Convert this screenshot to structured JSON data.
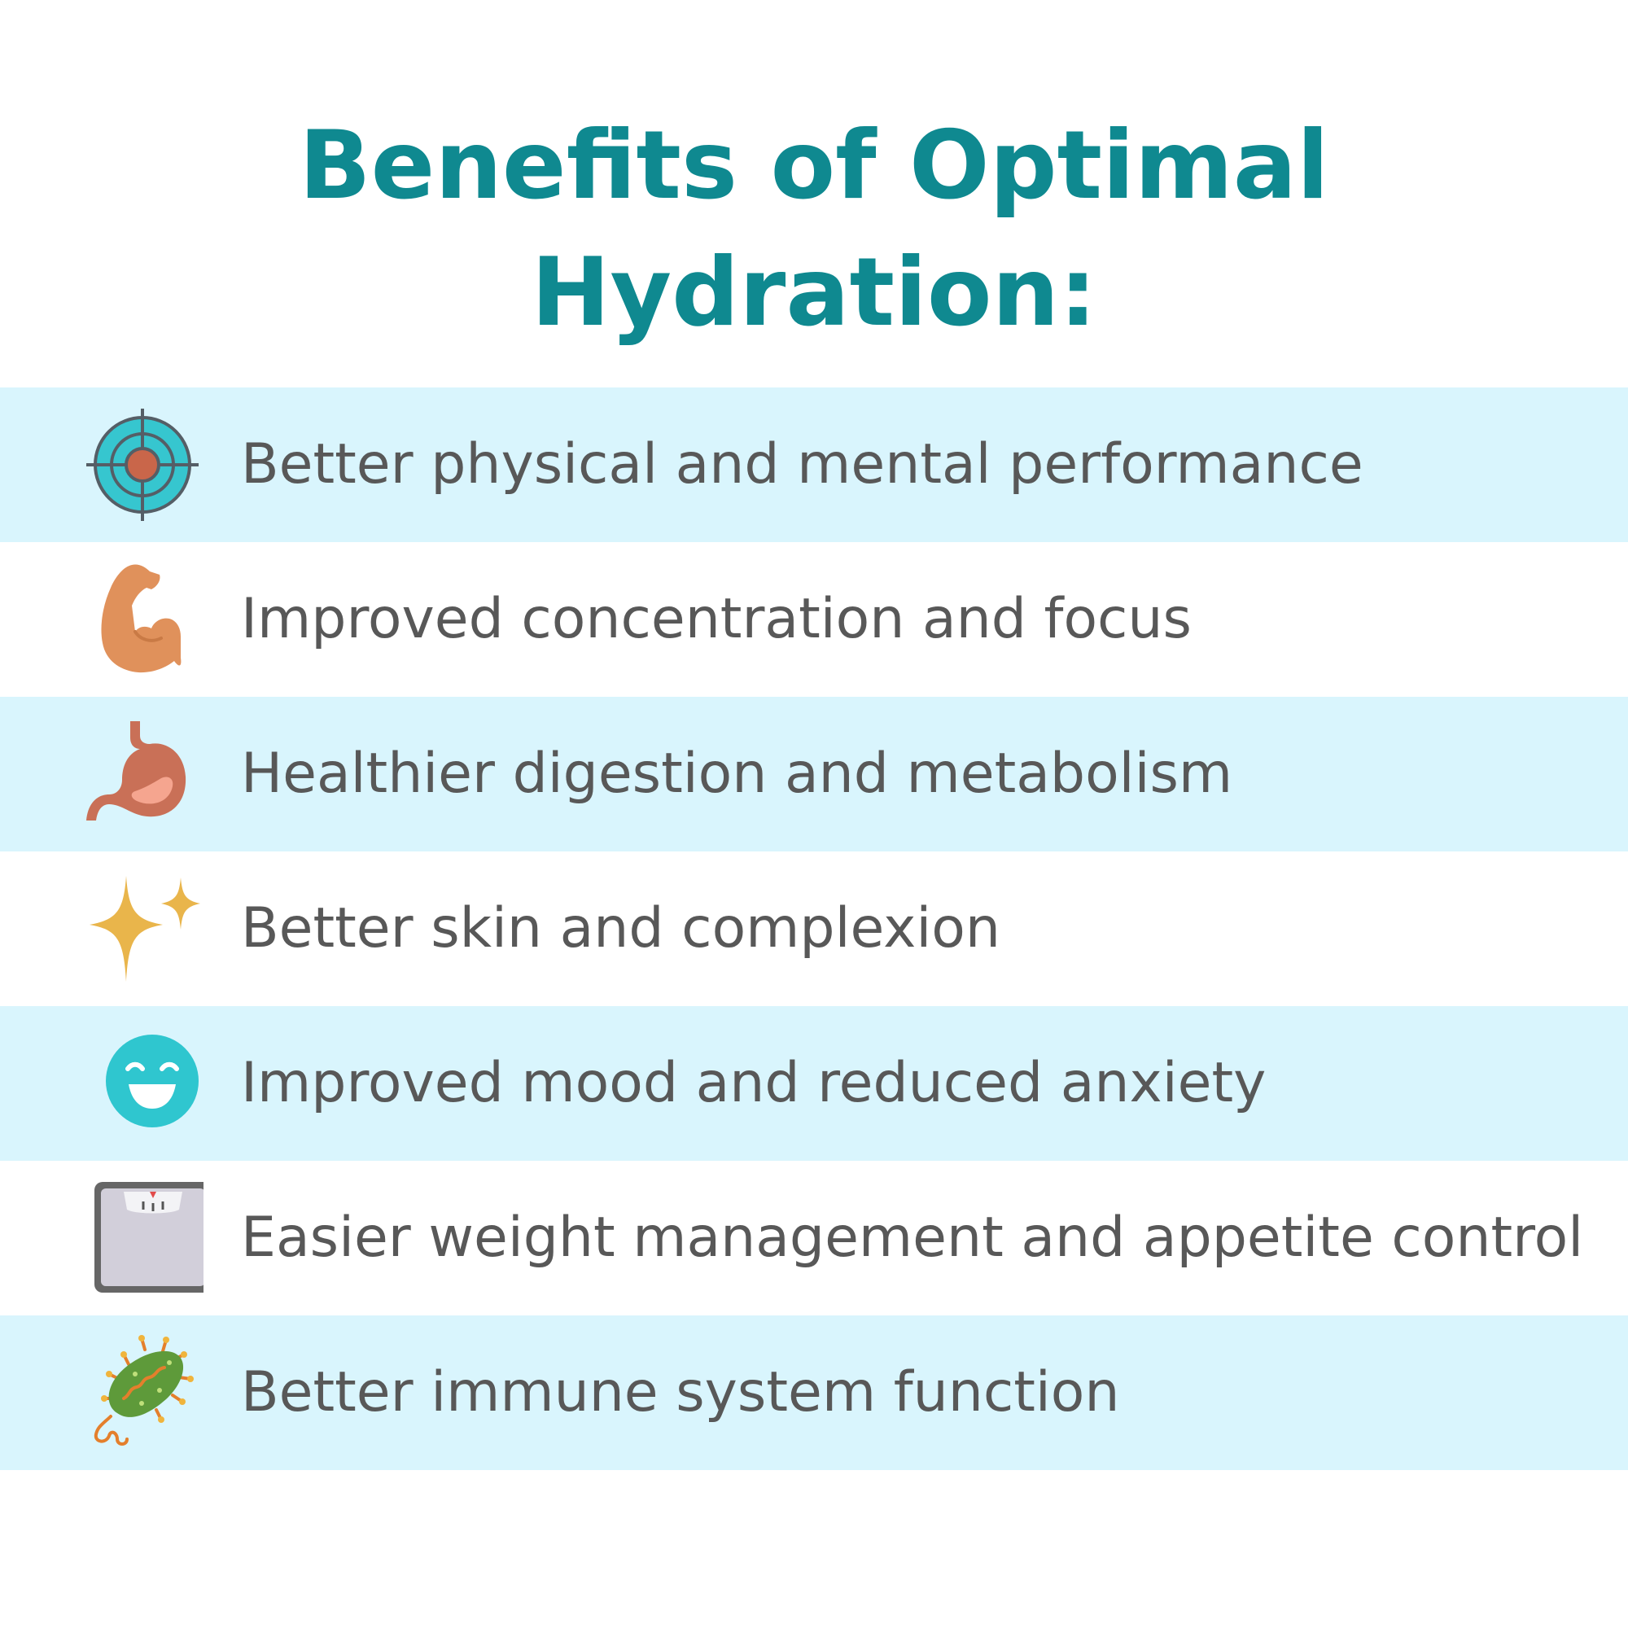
{
  "title": {
    "line1": "Benefits of Optimal",
    "line2": "Hydration:"
  },
  "colors": {
    "title": "#0f8990",
    "band": "#d9f5fd",
    "text": "#585858"
  },
  "benefits": [
    {
      "label": "Better physical and mental performance",
      "icon": "target-icon"
    },
    {
      "label": "Improved concentration and focus",
      "icon": "flexed-bicep-icon"
    },
    {
      "label": "Healthier digestion and metabolism",
      "icon": "stomach-icon"
    },
    {
      "label": "Better skin and complexion",
      "icon": "sparkles-icon"
    },
    {
      "label": "Improved mood and reduced anxiety",
      "icon": "smiley-face-icon"
    },
    {
      "label": "Easier weight management and appetite control",
      "icon": "weight-scale-icon"
    },
    {
      "label": "Better immune system function",
      "icon": "bacteria-icon"
    }
  ]
}
